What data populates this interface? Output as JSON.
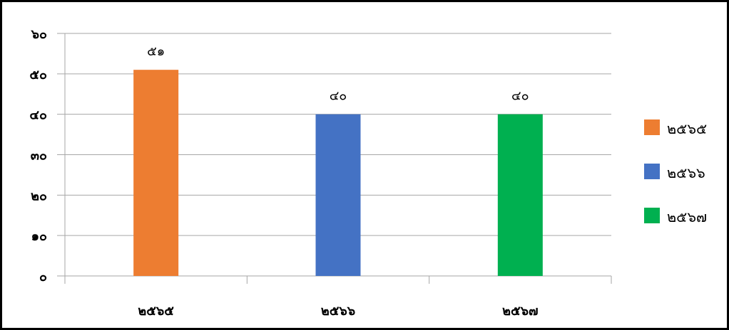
{
  "chart_data": {
    "type": "bar",
    "categories": [
      "๒๕๖๕",
      "๒๕๖๖",
      "๒๕๖๗"
    ],
    "values": [
      51,
      40,
      40
    ],
    "value_labels": [
      "๕๑",
      "๔๐",
      "๔๐"
    ],
    "colors": [
      "#ED7D31",
      "#4472C4",
      "#00B050"
    ],
    "ylim": [
      0,
      60
    ],
    "yticks": [
      0,
      10,
      20,
      30,
      40,
      50,
      60
    ],
    "ytick_labels": [
      "๐",
      "๑๐",
      "๒๐",
      "๓๐",
      "๔๐",
      "๕๐",
      "๖๐"
    ],
    "grid": true,
    "legend": {
      "position": "right",
      "entries": [
        "๒๕๖๕",
        "๒๕๖๖",
        "๒๕๖๗"
      ]
    }
  }
}
